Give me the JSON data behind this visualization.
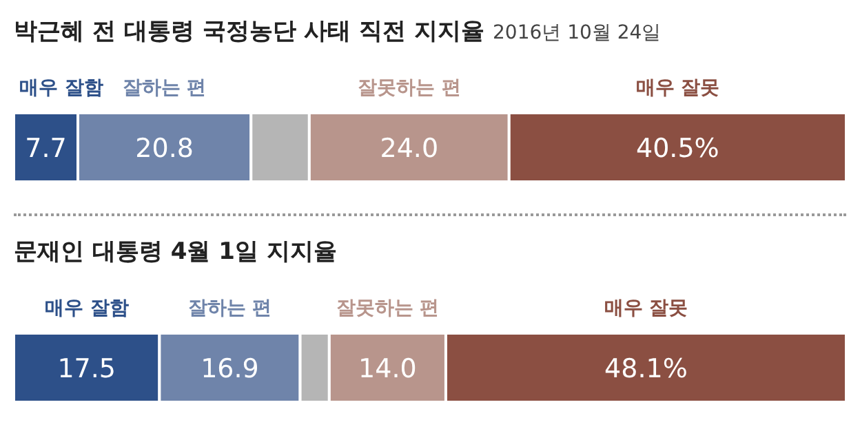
{
  "chart_data": [
    {
      "type": "bar",
      "orientation": "horizontal",
      "stacked": true,
      "title": "박근혜 전 대통령 국정농단 사태 직전 지지율",
      "subtitle": "2016년 10월 24일",
      "categories": [
        null
      ],
      "xlim": [
        0,
        100
      ],
      "legend": "top",
      "series": [
        {
          "name": "매우 잘함",
          "color": "#2d5089",
          "values": [
            7.7
          ],
          "value_labels": [
            "7.7"
          ]
        },
        {
          "name": "잘하는 편",
          "color": "#6f84aa",
          "values": [
            20.8
          ],
          "value_labels": [
            "20.8"
          ]
        },
        {
          "color": "#b5b5b5",
          "values": [
            7.0
          ],
          "value_labels": [
            null
          ]
        },
        {
          "name": "잘못하는 편",
          "color": "#b8958c",
          "values": [
            24.0
          ],
          "value_labels": [
            "24.0"
          ]
        },
        {
          "name": "매우 잘못",
          "color": "#8b4f42",
          "values": [
            40.5
          ],
          "value_labels": [
            "40.5%"
          ]
        }
      ]
    },
    {
      "type": "bar",
      "orientation": "horizontal",
      "stacked": true,
      "title": "문재인 대통령 4월 1일 지지율",
      "categories": [
        null
      ],
      "xlim": [
        0,
        100
      ],
      "legend": "top",
      "series": [
        {
          "name": "매우 잘함",
          "color": "#2d5089",
          "values": [
            17.5
          ],
          "value_labels": [
            "17.5"
          ]
        },
        {
          "name": "잘하는 편",
          "color": "#6f84aa",
          "values": [
            16.9
          ],
          "value_labels": [
            "16.9"
          ]
        },
        {
          "color": "#b5b5b5",
          "values": [
            3.5
          ],
          "value_labels": [
            null
          ]
        },
        {
          "name": "잘못하는 편",
          "color": "#b8958c",
          "values": [
            14.0
          ],
          "value_labels": [
            "14.0"
          ]
        },
        {
          "name": "매우 잘못",
          "color": "#8b4f42",
          "values": [
            48.1
          ],
          "value_labels": [
            "48.1%"
          ]
        }
      ]
    }
  ]
}
